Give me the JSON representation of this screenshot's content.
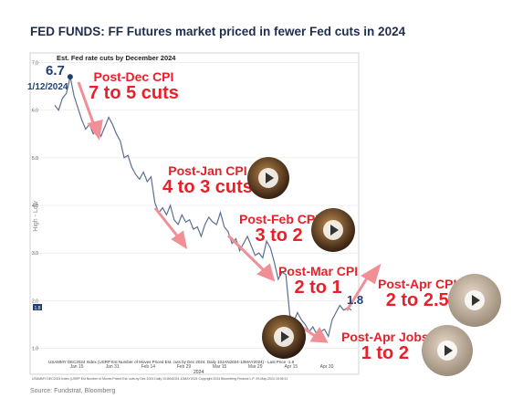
{
  "title": "FED FUNDS: FF Futures market priced in fewer Fed cuts in 2024",
  "source": "Source: Fundstrat, Bloomberg",
  "colors": {
    "line": "#5b6f93",
    "annotation": "#e8202a",
    "arrow": "#f08f96",
    "title": "#1f2d4d",
    "label_box": "#1f3f73"
  },
  "chart_data": {
    "type": "line",
    "title": "Est. Fed rate cuts by December 2024",
    "ylabel": "High - Low",
    "ylim": [
      0.8,
      7.2
    ],
    "yticks": [
      "7.0",
      "6.0",
      "5.0",
      "4.0",
      "3.0",
      "2.0",
      "1.0"
    ],
    "xticks": [
      "Jan 15",
      "Jan 31",
      "Feb 14",
      "Feb 29",
      "Mar 15",
      "Mar 29",
      "Apr 15",
      "Apr 30"
    ],
    "xaxis_year": "2024",
    "last_value_label": "1.8",
    "legend": "USAMMY DEC2024 Index (USRP Est Number of Moves Priced Est. cuts by Dec 2024. Daily 10JAN2024-10MAY2024) - Last Price -1.8",
    "footer": "USAMMY DEC2024 Index (USRP Est Number of Moves Priced Est. cuts by Dec 2024 Daily 10JAN2024-10MAY2024    Copyright 2024 Bloomberg Finance L.P.    09-May-2024 16:06:11",
    "series": [
      {
        "values": [
          6.1,
          6.0,
          6.25,
          6.35,
          6.7,
          6.3,
          6.05,
          5.8,
          5.6,
          5.7,
          5.5,
          5.6,
          5.45,
          5.65,
          5.85,
          5.7,
          5.5,
          5.35,
          5.0,
          5.05,
          4.8,
          4.65,
          4.55,
          4.7,
          4.5,
          4.6,
          4.05,
          3.85,
          3.95,
          3.8,
          4.0,
          3.7,
          3.6,
          3.8,
          3.65,
          3.7,
          3.5,
          3.55,
          3.35,
          3.6,
          3.75,
          3.65,
          3.6,
          3.85,
          3.55,
          3.45,
          3.2,
          3.3,
          3.05,
          3.2,
          3.35,
          3.15,
          2.95,
          3.0,
          2.9,
          3.25,
          3.1,
          2.8,
          2.45,
          2.6,
          2.55,
          1.7,
          1.55,
          1.75,
          1.6,
          1.5,
          1.35,
          1.45,
          1.3,
          1.35,
          1.4,
          1.25,
          1.6,
          1.75,
          1.9,
          1.8,
          1.85,
          1.8
        ]
      }
    ]
  },
  "annotations": {
    "start_value": "6.7",
    "start_date": "1/12/2024",
    "dec_cpi": {
      "l1": "Post-Dec CPI",
      "l2": "7 to 5 cuts"
    },
    "jan_cpi": {
      "l1": "Post-Jan CPI",
      "l2": "4 to 3 cuts"
    },
    "feb_cpi": {
      "l1": "Post-Feb CPI",
      "l2": "3 to 2"
    },
    "mar_cpi": {
      "l1": "Post-Mar CPI",
      "l2": "2 to 1"
    },
    "last_value": "1.8",
    "apr_cpi": {
      "l1": "Post-Apr CPI",
      "l2": "2 to 2.5"
    },
    "apr_jobs": {
      "l1": "Post-Apr Jobs",
      "l2": "1 to 2"
    }
  }
}
